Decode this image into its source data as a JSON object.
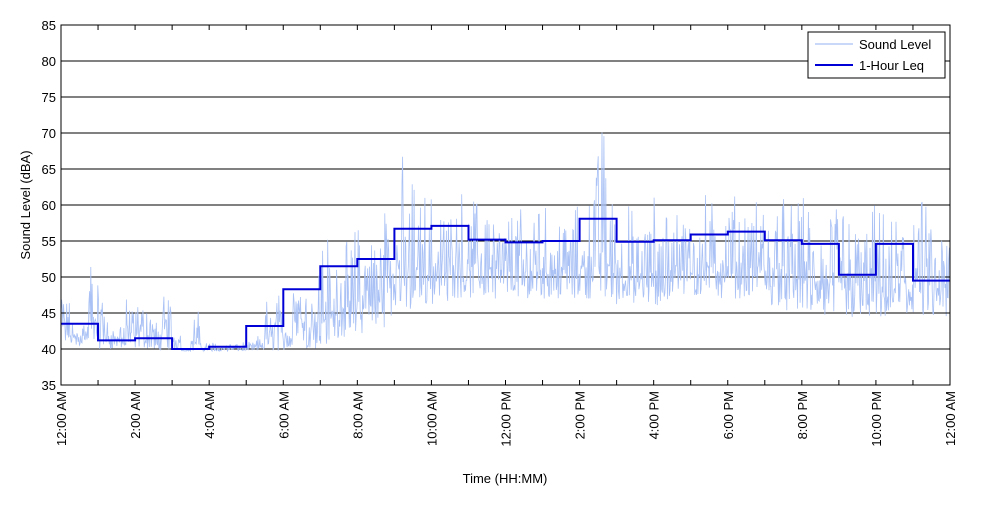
{
  "chart_data": {
    "type": "line",
    "title": "",
    "xlabel": "Time (HH:MM)",
    "ylabel": "Sound Level (dBA)",
    "ylim": [
      35,
      85
    ],
    "yticks": [
      35,
      40,
      45,
      50,
      55,
      60,
      65,
      70,
      75,
      80,
      85
    ],
    "xlim_hours": [
      0,
      24
    ],
    "xtick_labels": [
      "12:00 AM",
      "2:00 AM",
      "4:00 AM",
      "6:00 AM",
      "8:00 AM",
      "10:00 AM",
      "12:00 PM",
      "2:00 PM",
      "4:00 PM",
      "6:00 PM",
      "8:00 PM",
      "10:00 PM",
      "12:00 AM"
    ],
    "grid": "horizontal",
    "legend_position": "top-right",
    "series": [
      {
        "name": "Sound Level",
        "color": "#a9c1f5",
        "style": "thin noisy line",
        "x_hours": [
          0,
          0.25,
          0.5,
          0.75,
          1,
          1.25,
          1.5,
          1.75,
          2,
          2.25,
          2.5,
          2.75,
          3,
          3.25,
          3.5,
          3.75,
          4,
          4.25,
          4.5,
          4.75,
          5,
          5.25,
          5.5,
          5.75,
          6,
          6.25,
          6.5,
          6.75,
          7,
          7.25,
          7.5,
          7.75,
          8,
          8.25,
          8.5,
          8.75,
          9,
          9.25,
          9.5,
          9.75,
          10,
          10.25,
          10.5,
          10.75,
          11,
          11.25,
          11.5,
          11.75,
          12,
          12.25,
          12.5,
          12.75,
          13,
          13.25,
          13.5,
          13.75,
          14,
          14.25,
          14.5,
          14.75,
          15,
          15.25,
          15.5,
          15.75,
          16,
          16.25,
          16.5,
          16.75,
          17,
          17.25,
          17.5,
          17.75,
          18,
          18.25,
          18.5,
          18.75,
          19,
          19.25,
          19.5,
          19.75,
          20,
          20.25,
          20.5,
          20.75,
          21,
          21.25,
          21.5,
          21.75,
          22,
          22.25,
          22.5,
          22.75,
          23,
          23.25,
          23.5,
          23.75
        ],
        "min_dba": [
          40.5,
          40.5,
          40.5,
          40.3,
          40,
          40,
          40,
          40,
          40,
          40,
          39.8,
          39.8,
          39.8,
          39.7,
          39.7,
          39.7,
          39.7,
          39.7,
          39.7,
          39.7,
          39.7,
          39.7,
          39.7,
          39.7,
          39.8,
          39.8,
          40,
          40,
          40.5,
          41,
          41.5,
          41.5,
          42,
          42.5,
          43,
          44,
          45,
          45,
          45.5,
          46,
          46,
          46.5,
          47,
          47,
          47,
          47,
          47,
          47,
          47,
          47,
          47,
          47,
          47,
          47,
          47,
          47,
          47,
          47,
          47,
          47,
          46,
          46,
          46,
          46,
          46,
          46,
          47,
          47,
          47,
          47,
          47,
          47,
          47,
          47,
          47,
          47,
          46,
          46,
          45,
          45,
          45,
          45,
          44,
          44,
          44,
          44,
          44,
          44,
          44,
          44,
          44,
          44,
          44,
          44,
          44,
          44,
          43.5,
          43.5
        ],
        "max_dba": [
          49,
          44,
          45,
          53,
          49,
          44,
          45,
          47,
          48,
          47,
          44,
          48,
          44,
          40,
          46,
          41,
          41,
          41,
          41,
          41,
          41,
          42,
          47,
          48,
          48,
          61,
          50,
          52,
          56,
          55,
          55,
          57,
          58,
          60,
          62,
          64,
          67,
          65,
          63,
          62,
          63,
          62,
          64,
          62,
          61,
          61,
          60,
          60,
          59,
          60,
          59,
          61,
          60,
          60,
          60,
          60,
          60,
          66,
          72.5,
          62,
          63,
          60,
          60,
          61,
          62,
          61,
          62,
          61,
          63,
          62,
          61,
          61,
          62,
          62,
          61,
          61,
          61,
          62,
          61,
          62,
          61,
          58,
          61,
          60,
          61,
          59,
          60,
          61,
          59,
          58,
          59,
          60,
          61,
          60,
          57,
          58
        ]
      },
      {
        "name": "1-Hour Leq",
        "color": "#0000d6",
        "style": "stepped line",
        "hour_start": [
          0,
          1,
          2,
          3,
          4,
          5,
          6,
          7,
          8,
          9,
          10,
          11,
          12,
          13,
          14,
          15,
          16,
          17,
          18,
          19,
          20,
          21,
          22,
          23
        ],
        "values": [
          43.5,
          41.2,
          41.5,
          40.0,
          40.3,
          43.2,
          48.3,
          51.5,
          52.5,
          56.7,
          57.1,
          55.2,
          54.8,
          55.0,
          58.1,
          54.9,
          55.1,
          55.9,
          56.3,
          55.1,
          54.6,
          50.3,
          54.6,
          49.5
        ]
      }
    ]
  }
}
